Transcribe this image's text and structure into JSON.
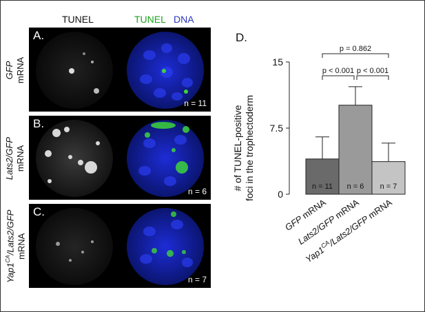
{
  "headers": {
    "tunel": "TUNEL",
    "tunel_green": "TUNEL",
    "dna": "DNA"
  },
  "panels": [
    {
      "label": "A.",
      "condition_line1": "GFP",
      "condition_line2": "mRNA",
      "n": "n = 11"
    },
    {
      "label": "B.",
      "condition_line1": "Lats2/GFP",
      "condition_line2": "mRNA",
      "n": "n = 6"
    },
    {
      "label": "C.",
      "condition_line1": "Yap1CA/Lats2/GFP",
      "condition_line2": "mRNA",
      "n": "n = 7"
    }
  ],
  "colors": {
    "tunel_green": "#1aa61a",
    "dna_blue": "#2b35b8",
    "bar1": "#6a6a6a",
    "bar2": "#9a9a9a",
    "bar3": "#c4c4c4"
  },
  "chart_data": {
    "type": "bar",
    "panel_label": "D.",
    "ylabel_line1": "# of TUNEL-positive",
    "ylabel_line2": "foci in the trophectoderm",
    "ylim": [
      0,
      15
    ],
    "yticks": [
      0,
      7.5,
      15
    ],
    "ytick_labels": [
      "0",
      "7.5",
      "15"
    ],
    "categories": [
      "GFP mRNA",
      "Lats2/GFP mRNA",
      "Yap1CA/Lats2/GFP mRNA"
    ],
    "values": [
      4.0,
      10.1,
      3.7
    ],
    "errors": [
      2.5,
      2.1,
      2.1
    ],
    "bar_labels": [
      "n = 11",
      "n = 6",
      "n = 7"
    ],
    "comparisons": [
      {
        "from": 0,
        "to": 2,
        "label": "p = 0.862"
      },
      {
        "from": 0,
        "to": 1,
        "label": "p < 0.001"
      },
      {
        "from": 1,
        "to": 2,
        "label": "p < 0.001"
      }
    ]
  }
}
